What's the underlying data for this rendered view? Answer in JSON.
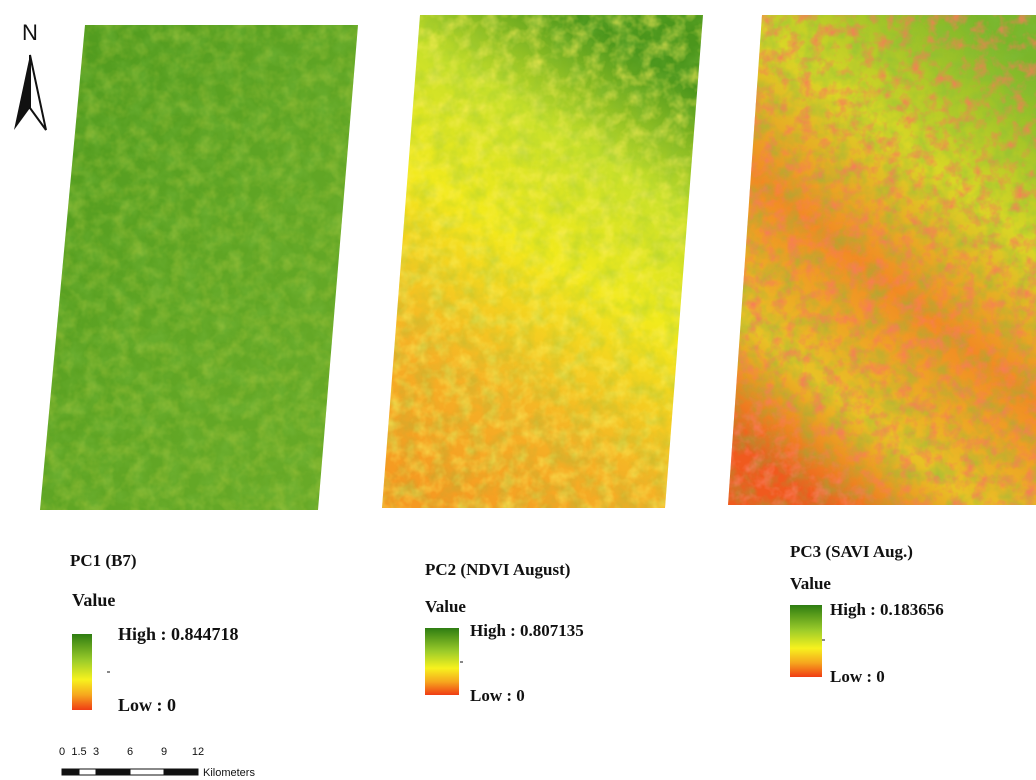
{
  "north_arrow": {
    "label": "N"
  },
  "panels": [
    {
      "title": "PC1 (B7)",
      "legend_title": "Value",
      "high": "High : 0.844718",
      "low": "Low : 0"
    },
    {
      "title": "PC2 (NDVI August)",
      "legend_title": "Value",
      "high": "High : 0.807135",
      "low": "Low : 0"
    },
    {
      "title": "PC3 (SAVI Aug.)",
      "legend_title": "Value",
      "high": "High : 0.183656",
      "low": "Low : 0"
    }
  ],
  "scale_bar": {
    "ticks": [
      0,
      1.5,
      3,
      6,
      9,
      12
    ],
    "unit": "Kilometers"
  }
}
